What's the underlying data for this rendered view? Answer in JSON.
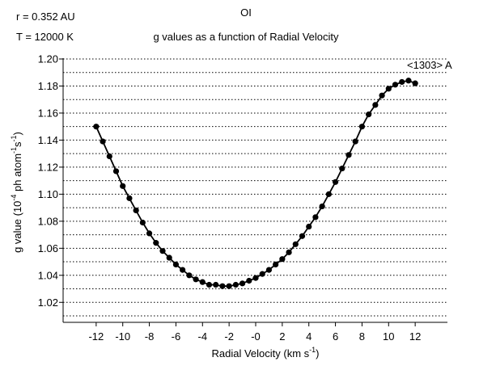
{
  "chart_data": {
    "type": "line",
    "title": "OI",
    "subtitle": "g values as a function of Radial Velocity",
    "params": [
      "r = 0.352 AU",
      "T = 12000 K"
    ],
    "annotation": "<1303> A",
    "xlabel": {
      "text": "Radial Velocity (km s",
      "sup": "-1",
      "close": ")"
    },
    "ylabel": {
      "a": "g value (10",
      "sup1": "-4",
      "b": " ph atom",
      "sup2": "-1",
      "c": "s",
      "sup3": "-1",
      "d": ")"
    },
    "xlim": [
      -14,
      14
    ],
    "ylim": [
      1.01,
      1.2
    ],
    "xticks": [
      {
        "v": -12,
        "label": "-12"
      },
      {
        "v": -10,
        "label": "-10"
      },
      {
        "v": -8,
        "label": "-8"
      },
      {
        "v": -6,
        "label": "-6"
      },
      {
        "v": -4,
        "label": "-4"
      },
      {
        "v": -2,
        "label": "-2"
      },
      {
        "v": 0,
        "label": "-0"
      },
      {
        "v": 2,
        "label": "2"
      },
      {
        "v": 4,
        "label": "4"
      },
      {
        "v": 6,
        "label": "6"
      },
      {
        "v": 8,
        "label": "8"
      },
      {
        "v": 10,
        "label": "10"
      },
      {
        "v": 12,
        "label": "12"
      }
    ],
    "yticks": [
      {
        "v": 1.02,
        "label": "1.02"
      },
      {
        "v": 1.04,
        "label": "1.04"
      },
      {
        "v": 1.06,
        "label": "1.06"
      },
      {
        "v": 1.08,
        "label": "1.08"
      },
      {
        "v": 1.1,
        "label": "1.10"
      },
      {
        "v": 1.12,
        "label": "1.12"
      },
      {
        "v": 1.14,
        "label": "1.14"
      },
      {
        "v": 1.16,
        "label": "1.16"
      },
      {
        "v": 1.18,
        "label": "1.18"
      },
      {
        "v": 1.2,
        "label": "1.20"
      }
    ],
    "gridlines_y": [
      1.01,
      1.02,
      1.03,
      1.04,
      1.05,
      1.06,
      1.07,
      1.08,
      1.09,
      1.1,
      1.11,
      1.12,
      1.13,
      1.14,
      1.15,
      1.16,
      1.17,
      1.18,
      1.19,
      1.2
    ],
    "grid": "horizontal dotted",
    "series": [
      {
        "x": [
          -12.0,
          -11.5,
          -11.0,
          -10.5,
          -10.0,
          -9.5,
          -9.0,
          -8.5,
          -8.0,
          -7.5,
          -7.0,
          -6.5,
          -6.0,
          -5.5,
          -5.0,
          -4.5,
          -4.0,
          -3.5,
          -3.0,
          -2.5,
          -2.0,
          -1.5,
          -1.0,
          -0.5,
          0.0,
          0.5,
          1.0,
          1.5,
          2.0,
          2.5,
          3.0,
          3.5,
          4.0,
          4.5,
          5.0,
          5.5,
          6.0,
          6.5,
          7.0,
          7.5,
          8.0,
          8.5,
          9.0,
          9.5,
          10.0,
          10.5,
          11.0,
          11.5,
          12.0
        ],
        "y": [
          1.15,
          1.139,
          1.128,
          1.117,
          1.106,
          1.097,
          1.088,
          1.079,
          1.071,
          1.064,
          1.058,
          1.053,
          1.048,
          1.044,
          1.04,
          1.037,
          1.035,
          1.033,
          1.033,
          1.032,
          1.032,
          1.033,
          1.034,
          1.036,
          1.038,
          1.041,
          1.044,
          1.048,
          1.052,
          1.057,
          1.063,
          1.069,
          1.076,
          1.083,
          1.091,
          1.1,
          1.109,
          1.119,
          1.129,
          1.139,
          1.15,
          1.159,
          1.166,
          1.173,
          1.178,
          1.181,
          1.183,
          1.184,
          1.182
        ]
      }
    ]
  }
}
